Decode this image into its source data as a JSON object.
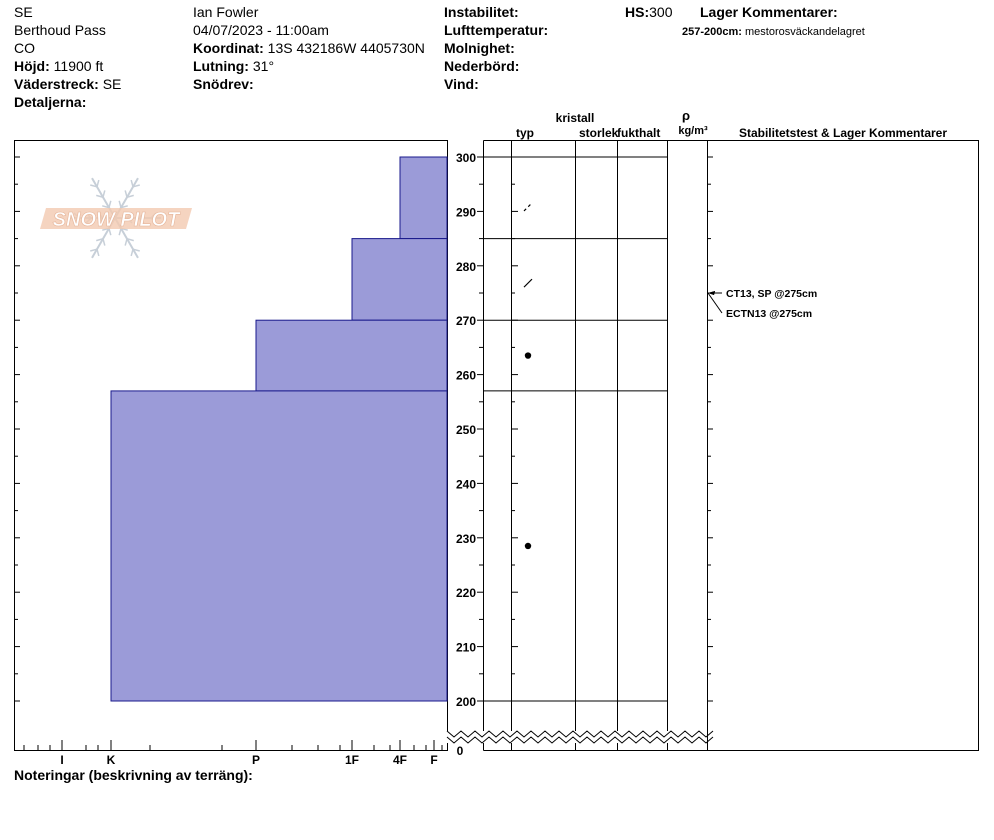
{
  "header": {
    "aspect": "SE",
    "location": "Berthoud Pass",
    "state": "CO",
    "elevation_label": "Höjd:",
    "elevation": "11900 ft",
    "aspect_label": "Väderstreck:",
    "aspect_value": "SE",
    "details_label": "Detaljerna:",
    "observer": "Ian Fowler",
    "datetime": "04/07/2023 - 11:00am",
    "coord_label": "Koordinat:",
    "coord": "13S 432186W 4405730N",
    "slope_label": "Lutning:",
    "slope": "31°",
    "drift_label": "Snödrev:",
    "instability_label": "Instabilitet:",
    "airtemp_label": "Lufttemperatur:",
    "clouds_label": "Molnighet:",
    "precip_label": "Nederbörd:",
    "wind_label": "Vind:",
    "hs_label": "HS:",
    "hs_value": "300",
    "layer_comments_label": "Lager Kommentarer:",
    "layer_comment_range": "257-200cm:",
    "layer_comment_text": "mestorosväckandelagret"
  },
  "columns": {
    "crystal": "kristall",
    "type": "typ",
    "size": "storlek",
    "moisture": "fukthalt",
    "rho": "ρ",
    "density_unit": "kg/m³",
    "stability": "Stabilitetstest & Lager Kommentarer"
  },
  "notes_label": "Noteringar (beskrivning av terräng):",
  "watermark": "SNOW PILOT",
  "colors": {
    "layer_fill": "#9b9bd8",
    "layer_stroke": "#1a1a8c",
    "watermark": "#f2c9b0"
  },
  "chart_data": {
    "type": "bar",
    "title": "",
    "xlabel": "",
    "ylabel": "",
    "ylim": [
      200,
      300
    ],
    "broken_axis_zero_label": "0",
    "y_ticks": [
      200,
      210,
      220,
      230,
      240,
      250,
      260,
      270,
      280,
      290,
      300
    ],
    "hardness_ticks": [
      "I",
      "K",
      "P",
      "1F",
      "4F",
      "F"
    ],
    "layers": [
      {
        "top": 300,
        "bottom": 285,
        "hardness": "4F-"
      },
      {
        "top": 285,
        "bottom": 270,
        "hardness": "1F"
      },
      {
        "top": 270,
        "bottom": 257,
        "hardness": "P"
      },
      {
        "top": 257,
        "bottom": 200,
        "hardness": "K"
      }
    ],
    "grain_symbols": [
      {
        "height": 291,
        "symbol": "faceted-slash-dashed"
      },
      {
        "height": 277,
        "symbol": "faceted-slash"
      },
      {
        "height": 263.5,
        "symbol": "dot"
      },
      {
        "height": 228.5,
        "symbol": "dot"
      }
    ],
    "stability_tests": [
      {
        "label": "CT13, SP @275cm",
        "height": 275
      },
      {
        "label": "ECTN13 @275cm",
        "height": 275
      }
    ]
  }
}
